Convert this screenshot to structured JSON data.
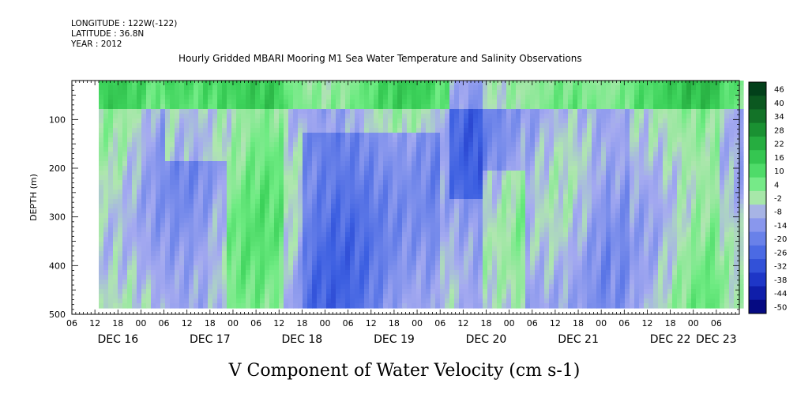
{
  "header": {
    "longitude": "LONGITUDE : 122W(-122)",
    "latitude": "LATITUDE : 36.8N",
    "year": "YEAR : 2012",
    "title": "Hourly Gridded MBARI Mooring M1 Sea Water Temperature and Salinity Observations"
  },
  "chart_data": {
    "type": "heatmap",
    "title": "Hourly Gridded MBARI Mooring M1 Sea Water Temperature and Salinity Observations",
    "xlabel": "V Component of Water Velocity (cm s-1)",
    "ylabel": "DEPTH (m)",
    "ylim": [
      500,
      20
    ],
    "y_inverted": true,
    "y_ticks": [
      100,
      200,
      300,
      400,
      500
    ],
    "x_range_hours": [
      0,
      174
    ],
    "x_hour_labels": [
      "06",
      "12",
      "18",
      "00",
      "06",
      "12",
      "18",
      "00",
      "06",
      "12",
      "18",
      "00",
      "06",
      "12",
      "18",
      "00",
      "06",
      "12",
      "18",
      "00",
      "06",
      "12",
      "18",
      "00",
      "06",
      "12",
      "18",
      "00",
      "06"
    ],
    "x_date_labels": [
      {
        "label": "DEC 16",
        "hour": 12
      },
      {
        "label": "DEC 17",
        "hour": 36
      },
      {
        "label": "DEC 18",
        "hour": 60
      },
      {
        "label": "DEC 19",
        "hour": 84
      },
      {
        "label": "DEC 20",
        "hour": 108
      },
      {
        "label": "DEC 21",
        "hour": 132
      },
      {
        "label": "DEC 22",
        "hour": 156
      },
      {
        "label": "DEC 23",
        "hour": 168
      }
    ],
    "data_start_hour": 7,
    "data_depth_range": [
      20,
      485
    ],
    "colorbar": {
      "levels": [
        "46",
        "40",
        "34",
        "28",
        "22",
        "16",
        "10",
        "4",
        "-2",
        "-8",
        "-14",
        "-20",
        "-26",
        "-32",
        "-38",
        "-44",
        "-50"
      ],
      "min": -50,
      "max": 50
    },
    "grid": false
  }
}
